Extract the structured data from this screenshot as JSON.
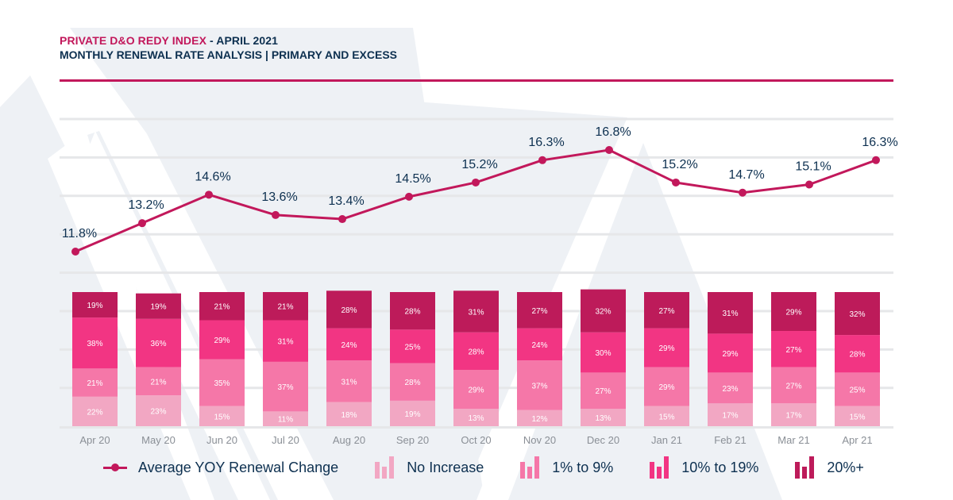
{
  "header": {
    "brand": "PRIVATE D&O REDY INDEX",
    "date": " - APRIL 2021",
    "subtitle": "MONTHLY RENEWAL RATE ANALYSIS | PRIMARY AND EXCESS"
  },
  "colors": {
    "accent": "#c2185b",
    "text": "#0d3050",
    "axis_text": "#8a8f96",
    "gridline": "#e6e7e9",
    "no_increase": "#f2a7c3",
    "pct_1_9": "#f577a8",
    "pct_10_19": "#f23583",
    "pct_20_plus": "#bd1b5a",
    "background_shape": "#eef1f5"
  },
  "legend": [
    {
      "key": "avg",
      "label": "Average YOY Renewal Change",
      "icon": "line-marker-icon"
    },
    {
      "key": "no_increase",
      "label": "No Increase",
      "icon": "bar-chart-icon"
    },
    {
      "key": "pct_1_9",
      "label": "1% to 9%",
      "icon": "bar-chart-icon"
    },
    {
      "key": "pct_10_19",
      "label": "10% to 19%",
      "icon": "bar-chart-icon"
    },
    {
      "key": "pct_20_plus",
      "label": "20%+",
      "icon": "bar-chart-icon"
    }
  ],
  "chart_data": {
    "type": "bar",
    "subtype": "stacked-bar-with-line",
    "title": "PRIVATE D&O REDY INDEX - APRIL 2021",
    "subtitle": "MONTHLY RENEWAL RATE ANALYSIS | PRIMARY AND EXCESS",
    "xlabel": "",
    "ylabel": "",
    "grid": true,
    "legend_position": "bottom",
    "categories": [
      "Apr 20",
      "May 20",
      "Jun 20",
      "Jul 20",
      "Aug 20",
      "Sep 20",
      "Oct 20",
      "Nov 20",
      "Dec 20",
      "Jan 21",
      "Feb 21",
      "Mar 21",
      "Apr 21"
    ],
    "series": [
      {
        "name": "No Increase",
        "type": "stacked-bar",
        "values": [
          22,
          23,
          15,
          11,
          18,
          19,
          13,
          12,
          13,
          15,
          17,
          17,
          15
        ]
      },
      {
        "name": "1% to 9%",
        "type": "stacked-bar",
        "values": [
          21,
          21,
          35,
          37,
          31,
          28,
          29,
          37,
          27,
          29,
          23,
          27,
          25
        ]
      },
      {
        "name": "10% to 19%",
        "type": "stacked-bar",
        "values": [
          38,
          36,
          29,
          31,
          24,
          25,
          28,
          24,
          30,
          29,
          29,
          27,
          28
        ]
      },
      {
        "name": "20%+",
        "type": "stacked-bar",
        "values": [
          19,
          19,
          21,
          21,
          28,
          28,
          31,
          27,
          32,
          27,
          31,
          29,
          32
        ]
      },
      {
        "name": "Average YOY Renewal Change",
        "type": "line",
        "unit": "%",
        "values": [
          11.8,
          13.2,
          14.6,
          13.6,
          13.4,
          14.5,
          15.2,
          16.3,
          16.8,
          15.2,
          14.7,
          15.1,
          16.3
        ]
      }
    ],
    "bar_value_suffix": "%",
    "line_value_labels": [
      "11.8%",
      "13.2%",
      "14.6%",
      "13.6%",
      "13.4%",
      "14.5%",
      "15.2%",
      "16.3%",
      "16.8%",
      "15.2%",
      "14.7%",
      "15.1%",
      "16.3%"
    ]
  }
}
